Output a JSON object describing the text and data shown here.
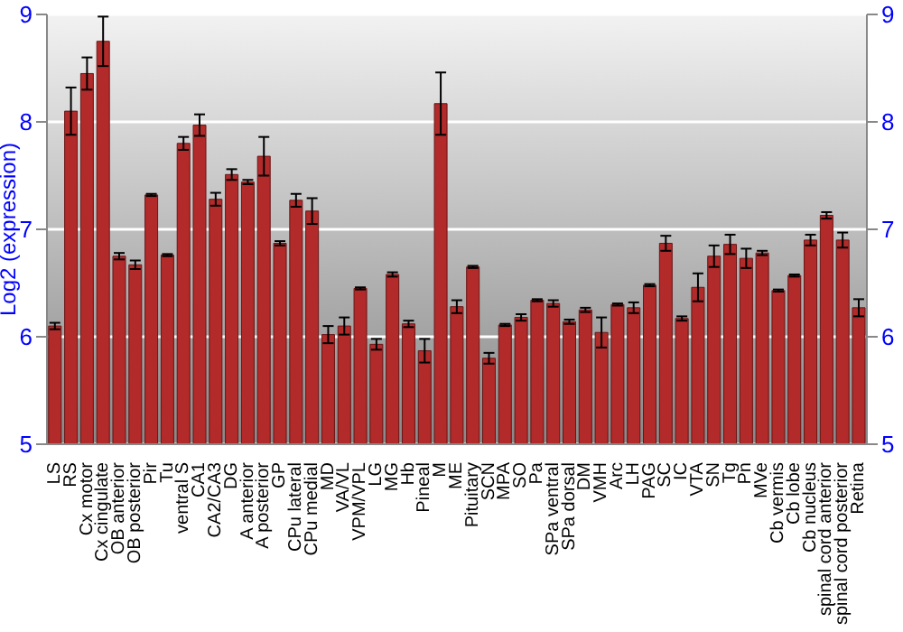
{
  "chart_data": {
    "type": "bar",
    "ylabel": "Log2 (expression)",
    "categories": [
      "LS",
      "RS",
      "Cx motor",
      "Cx cingulate",
      "OB anterior",
      "OB posterior",
      "Pir",
      "Tu",
      "ventral S",
      "CA1",
      "CA2/CA3",
      "DG",
      "A anterior",
      "A posterior",
      "GP",
      "CPu lateral",
      "CPu medial",
      "MD",
      "VA/VL",
      "VPM/VPL",
      "LG",
      "MG",
      "Hb",
      "Pineal",
      "M",
      "ME",
      "Pituitary",
      "SCN",
      "MPA",
      "SO",
      "Pa",
      "SPa ventral",
      "SPa dorsal",
      "DM",
      "VMH",
      "Arc",
      "LH",
      "PAG",
      "SC",
      "IC",
      "VTA",
      "SN",
      "Tg",
      "Pn",
      "MVe",
      "Cb vermis",
      "Cb lobe",
      "Cb nucleus",
      "spinal cord anterior",
      "spinal cord posterior",
      "Retina"
    ],
    "values": [
      6.1,
      8.1,
      8.45,
      8.75,
      6.75,
      6.67,
      7.32,
      6.76,
      7.8,
      7.97,
      7.28,
      7.51,
      7.44,
      7.68,
      6.87,
      7.27,
      7.17,
      6.02,
      6.1,
      6.45,
      5.93,
      6.58,
      6.12,
      5.87,
      8.17,
      6.28,
      6.65,
      5.8,
      6.11,
      6.18,
      6.34,
      6.31,
      6.14,
      6.25,
      6.04,
      6.3,
      6.27,
      6.48,
      6.87,
      6.17,
      6.46,
      6.75,
      6.86,
      6.73,
      6.78,
      6.43,
      6.57,
      6.9,
      7.13,
      6.9,
      6.27
    ],
    "errors": [
      0.03,
      0.22,
      0.15,
      0.23,
      0.03,
      0.04,
      0.01,
      0.01,
      0.06,
      0.1,
      0.06,
      0.05,
      0.02,
      0.18,
      0.02,
      0.06,
      0.12,
      0.08,
      0.08,
      0.01,
      0.05,
      0.02,
      0.03,
      0.11,
      0.29,
      0.06,
      0.01,
      0.05,
      0.01,
      0.03,
      0.01,
      0.03,
      0.02,
      0.02,
      0.14,
      0.01,
      0.05,
      0.01,
      0.07,
      0.02,
      0.13,
      0.1,
      0.09,
      0.09,
      0.02,
      0.01,
      0.01,
      0.05,
      0.03,
      0.07,
      0.08
    ],
    "color": "#b22a2a",
    "ylim": [
      5,
      9
    ],
    "yticks": [
      5,
      6,
      7,
      8,
      9
    ],
    "y2lim": [
      5,
      9
    ],
    "y2ticks": [
      5,
      6,
      7,
      8,
      9
    ],
    "grid": "y"
  }
}
